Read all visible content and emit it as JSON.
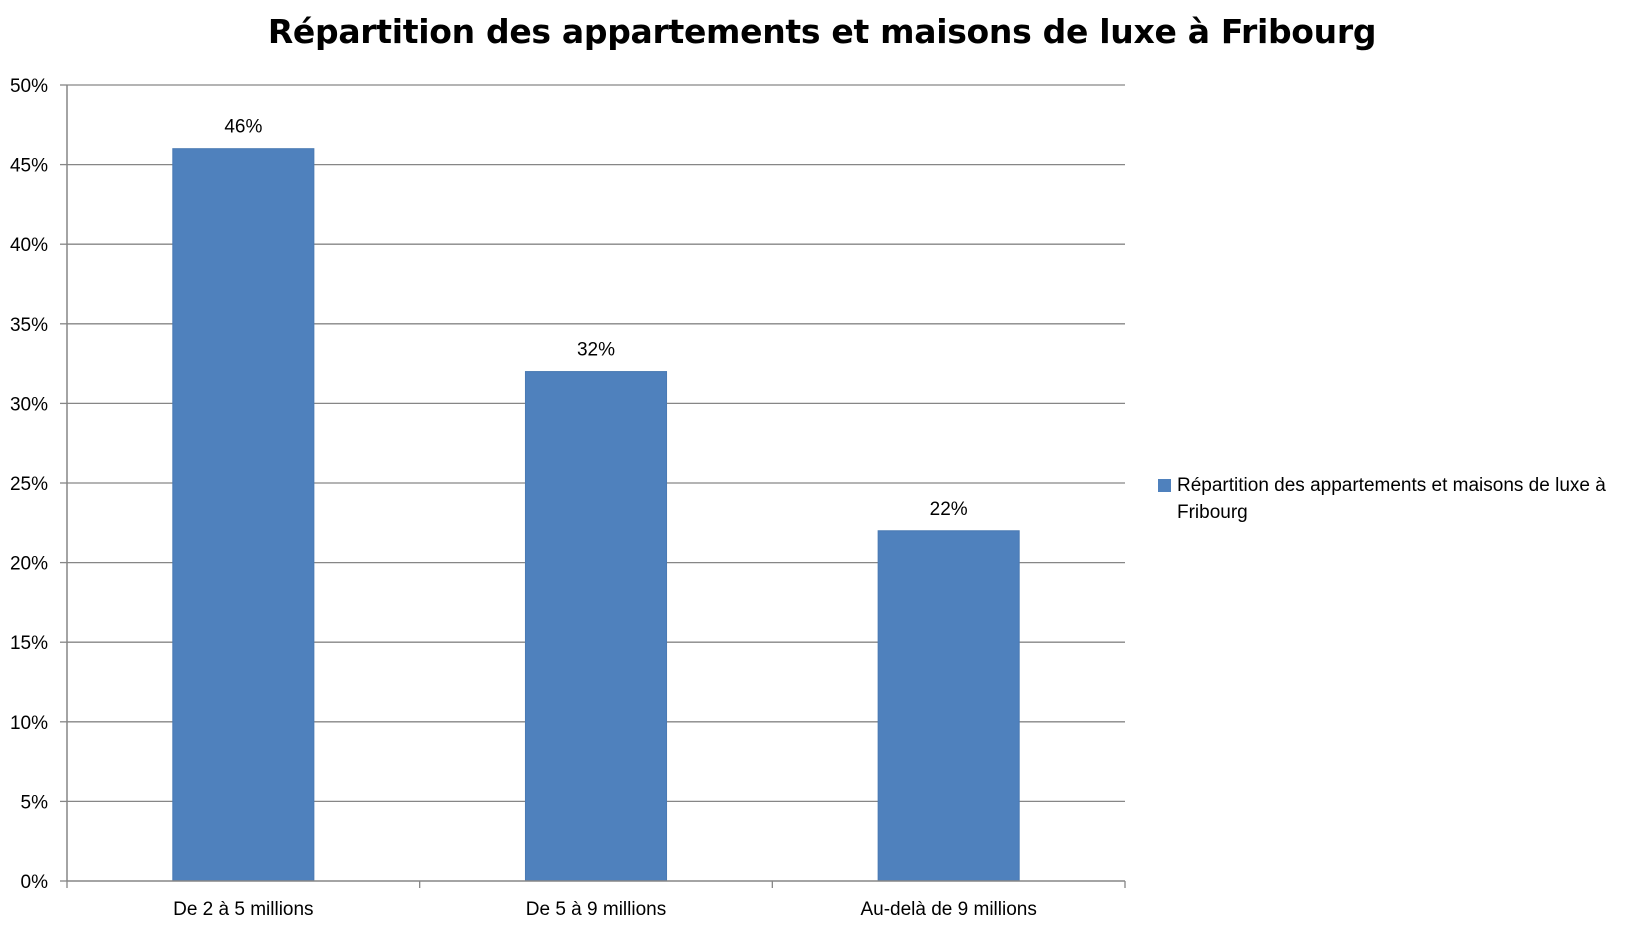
{
  "chart_data": {
    "type": "bar",
    "title": "Répartition des appartements et maisons de luxe à Fribourg",
    "categories": [
      "De 2 à 5 millions",
      "De 5 à 9 millions",
      "Au-delà de 9 millions"
    ],
    "series": [
      {
        "name": "Répartition des appartements et maisons de luxe à Fribourg",
        "values": [
          46,
          32,
          22
        ],
        "labels": [
          "46%",
          "32%",
          "22%"
        ],
        "color": "#4f81bd"
      }
    ],
    "ylim": [
      0,
      50
    ],
    "yticks": [
      "0%",
      "5%",
      "10%",
      "15%",
      "20%",
      "25%",
      "30%",
      "35%",
      "40%",
      "45%",
      "50%"
    ],
    "grid": true,
    "legend": "right"
  }
}
